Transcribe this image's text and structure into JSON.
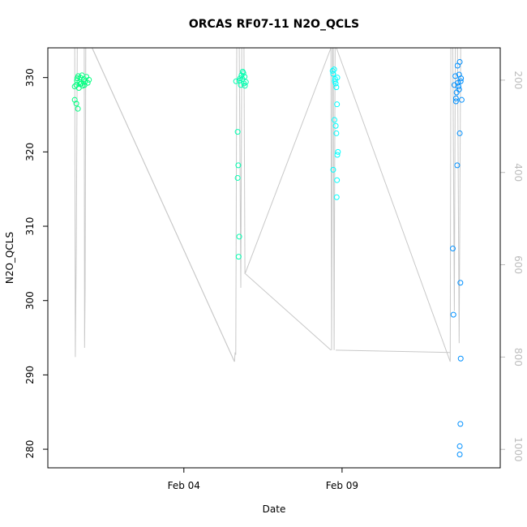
{
  "chart_data": {
    "type": "scatter",
    "title": "ORCAS RF07-11 N2O_QCLS",
    "xlabel": "Date",
    "ylabel": "N2O_QCLS",
    "x_unit": "days since Jan 31",
    "xlim": [
      -0.3,
      14.0
    ],
    "ylim": [
      277.5,
      334
    ],
    "x_ticks": [
      {
        "value": 4,
        "label": "Feb 04"
      },
      {
        "value": 9,
        "label": "Feb 09"
      }
    ],
    "y_ticks": [
      280,
      290,
      300,
      310,
      320,
      330
    ],
    "y2_label": "",
    "y2_ticks": [
      200,
      400,
      600,
      800,
      1000
    ],
    "y2_lim": [
      1040,
      130
    ],
    "colors": {
      "rf07": "#00ff80",
      "rf08": "#00ffb0",
      "rf09": "#00ffff",
      "rf10": "#0090ff",
      "pressure": "#c8c8c8"
    },
    "series": [
      {
        "color_key": "rf07",
        "points": [
          [
            0.55,
            327.0
          ],
          [
            0.6,
            326.5
          ],
          [
            0.65,
            325.8
          ],
          [
            0.55,
            328.8
          ],
          [
            0.6,
            329.0
          ],
          [
            0.62,
            329.6
          ],
          [
            0.66,
            330.2
          ],
          [
            0.7,
            329.4
          ],
          [
            0.73,
            330.0
          ],
          [
            0.76,
            329.2
          ],
          [
            0.8,
            328.9
          ],
          [
            0.84,
            329.8
          ],
          [
            0.88,
            329.5
          ],
          [
            0.92,
            330.1
          ],
          [
            0.96,
            329.3
          ],
          [
            1.0,
            329.7
          ],
          [
            0.63,
            329.9
          ],
          [
            0.68,
            328.6
          ],
          [
            0.72,
            329.1
          ],
          [
            0.78,
            330.3
          ],
          [
            0.86,
            329.0
          ]
        ]
      },
      {
        "color_key": "rf08",
        "points": [
          [
            5.65,
            329.5
          ],
          [
            5.7,
            322.7
          ],
          [
            5.72,
            318.2
          ],
          [
            5.7,
            316.5
          ],
          [
            5.75,
            308.6
          ],
          [
            5.73,
            305.9
          ],
          [
            5.78,
            329.9
          ],
          [
            5.82,
            330.3
          ],
          [
            5.85,
            329.8
          ],
          [
            5.88,
            330.6
          ],
          [
            5.9,
            329.2
          ],
          [
            5.93,
            328.9
          ],
          [
            5.8,
            329.0
          ],
          [
            5.86,
            330.8
          ],
          [
            5.92,
            330.1
          ],
          [
            5.76,
            329.6
          ],
          [
            5.96,
            329.4
          ]
        ]
      },
      {
        "color_key": "rf09",
        "points": [
          [
            8.72,
            330.5
          ],
          [
            8.75,
            331.1
          ],
          [
            8.78,
            329.8
          ],
          [
            8.8,
            329.2
          ],
          [
            8.82,
            328.7
          ],
          [
            8.85,
            330.0
          ],
          [
            8.76,
            324.3
          ],
          [
            8.8,
            323.5
          ],
          [
            8.82,
            322.5
          ],
          [
            8.72,
            317.6
          ],
          [
            8.85,
            319.6
          ],
          [
            8.87,
            320.0
          ],
          [
            8.84,
            316.2
          ],
          [
            8.83,
            313.9
          ],
          [
            8.84,
            326.4
          ],
          [
            8.77,
            329.5
          ],
          [
            8.7,
            330.9
          ]
        ]
      },
      {
        "color_key": "rf10",
        "points": [
          [
            12.5,
            307.0
          ],
          [
            12.52,
            298.1
          ],
          [
            12.55,
            329.0
          ],
          [
            12.6,
            327.2
          ],
          [
            12.58,
            330.2
          ],
          [
            12.65,
            331.6
          ],
          [
            12.7,
            330.4
          ],
          [
            12.72,
            332.1
          ],
          [
            12.75,
            329.5
          ],
          [
            12.68,
            328.8
          ],
          [
            12.62,
            328.0
          ],
          [
            12.64,
            318.2
          ],
          [
            12.72,
            322.5
          ],
          [
            12.74,
            302.4
          ],
          [
            12.75,
            292.2
          ],
          [
            12.74,
            283.4
          ],
          [
            12.72,
            280.4
          ],
          [
            12.72,
            279.3
          ],
          [
            12.78,
            327.0
          ],
          [
            12.66,
            329.3
          ],
          [
            12.7,
            328.4
          ],
          [
            12.6,
            326.8
          ],
          [
            12.76,
            329.9
          ]
        ]
      }
    ],
    "pressure_series": [
      [
        0.55,
        130
      ],
      [
        0.57,
        800
      ],
      [
        0.6,
        560
      ],
      [
        0.63,
        130
      ],
      [
        0.85,
        130
      ],
      [
        0.86,
        780
      ],
      [
        0.88,
        650
      ],
      [
        0.9,
        130
      ],
      [
        1.1,
        130
      ],
      [
        5.6,
        810
      ],
      [
        5.62,
        790
      ],
      [
        5.64,
        795
      ],
      [
        5.67,
        130
      ],
      [
        5.75,
        130
      ],
      [
        5.8,
        650
      ],
      [
        5.83,
        130
      ],
      [
        5.9,
        130
      ],
      [
        5.93,
        620
      ],
      [
        8.65,
        130
      ],
      [
        8.67,
        785
      ],
      [
        8.7,
        130
      ],
      [
        8.72,
        130
      ],
      [
        8.75,
        785
      ],
      [
        8.78,
        130
      ],
      [
        8.82,
        130
      ],
      [
        12.42,
        810
      ],
      [
        12.44,
        130
      ],
      [
        12.5,
        130
      ],
      [
        12.55,
        700
      ],
      [
        12.58,
        130
      ],
      [
        12.65,
        130
      ],
      [
        12.7,
        770
      ],
      [
        12.75,
        130
      ]
    ],
    "pressure_segments": [
      [
        [
          1.1,
          130
        ],
        [
          5.6,
          810
        ]
      ],
      [
        [
          5.95,
          620
        ],
        [
          8.65,
          785
        ]
      ],
      [
        [
          8.8,
          785
        ],
        [
          12.42,
          790
        ]
      ]
    ]
  }
}
